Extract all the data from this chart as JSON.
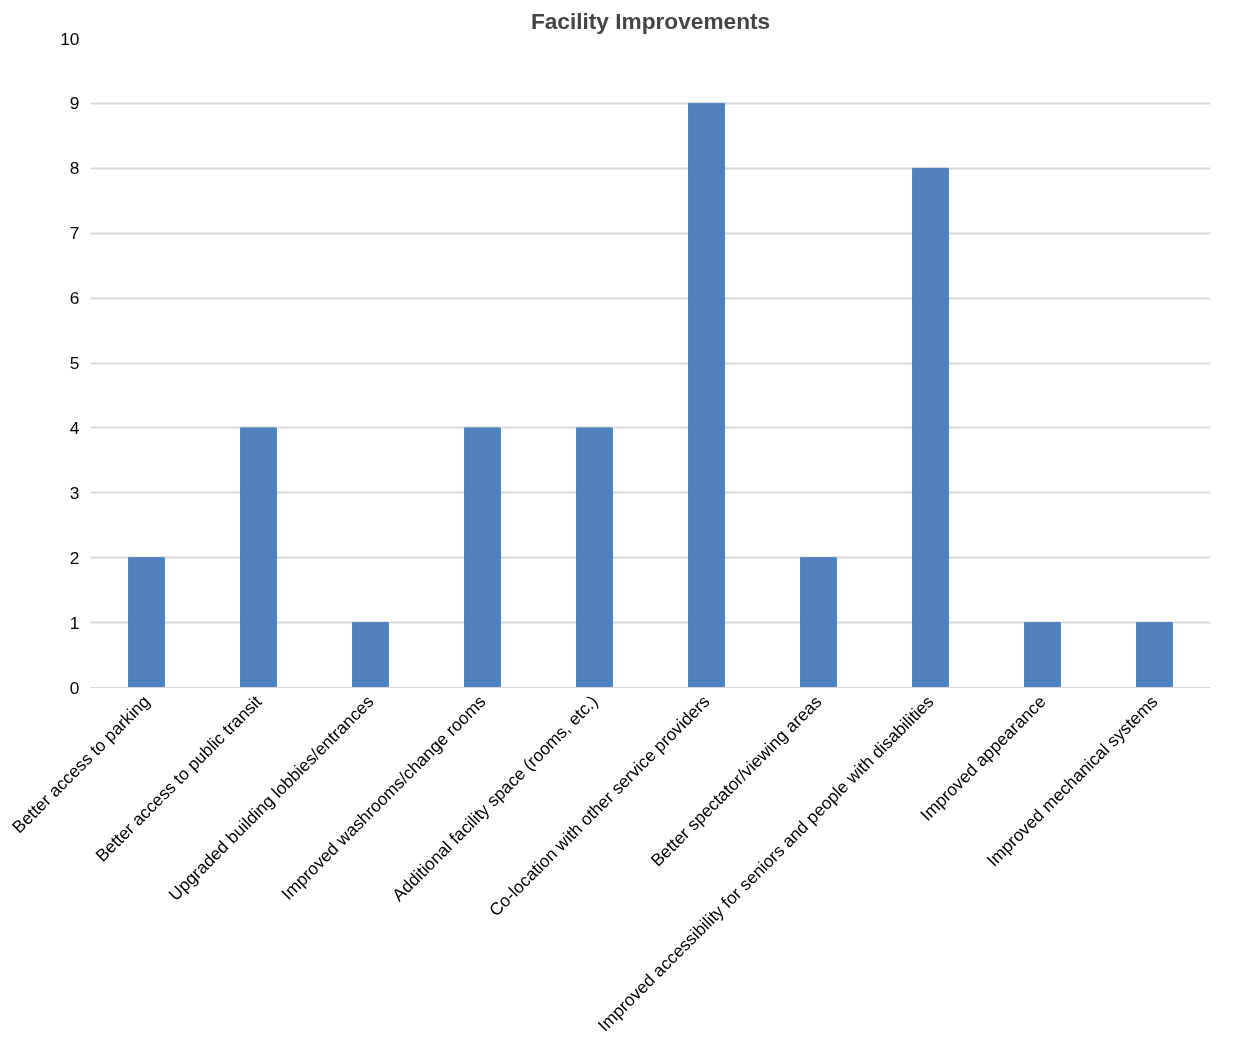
{
  "chart_data": {
    "type": "bar",
    "title": "Facility Improvements",
    "categories": [
      "Better access to parking",
      "Better access to public transit",
      "Upgraded building lobbies/entrances",
      "Improved washrooms/change rooms",
      "Additional facility space (rooms, etc.)",
      "Co-location with other service providers",
      "Better spectator/viewing areas",
      "Improved accessibility for seniors and people with disabilities",
      "Improved appearance",
      "Improved mechanical systems"
    ],
    "values": [
      2,
      4,
      1,
      4,
      4,
      9,
      2,
      8,
      1,
      1
    ],
    "color": "#4f81bd",
    "ylim": [
      0,
      10
    ],
    "yticks": [
      0,
      1,
      2,
      3,
      4,
      5,
      6,
      7,
      8,
      9,
      10
    ],
    "grid": "y"
  }
}
